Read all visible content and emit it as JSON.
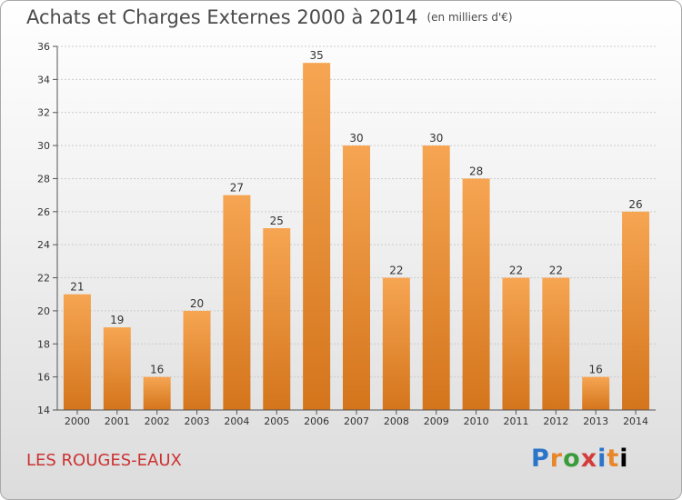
{
  "title": "Achats et Charges Externes 2000 à 2014",
  "subtitle": "(en milliers d'€)",
  "location": "LES ROUGES-EAUX",
  "brand": [
    "P",
    "r",
    "o",
    "x",
    "i",
    "t",
    "i"
  ],
  "colors": {
    "bar_top": "#f6a552",
    "bar_bottom": "#d4751c",
    "location": "#cc3333",
    "grid": "#cccccc"
  },
  "chart_data": {
    "type": "bar",
    "title": "Achats et Charges Externes 2000 à 2014",
    "subtitle": "(en milliers d'€)",
    "categories": [
      "2000",
      "2001",
      "2002",
      "2003",
      "2004",
      "2005",
      "2006",
      "2007",
      "2008",
      "2009",
      "2010",
      "2011",
      "2012",
      "2013",
      "2014"
    ],
    "values": [
      21,
      19,
      16,
      20,
      27,
      25,
      35,
      30,
      22,
      30,
      28,
      22,
      22,
      16,
      26
    ],
    "ylim": [
      14,
      36
    ],
    "yticks": [
      14,
      16,
      18,
      20,
      22,
      24,
      26,
      28,
      30,
      32,
      34,
      36
    ],
    "grid": true,
    "legend": "none"
  }
}
